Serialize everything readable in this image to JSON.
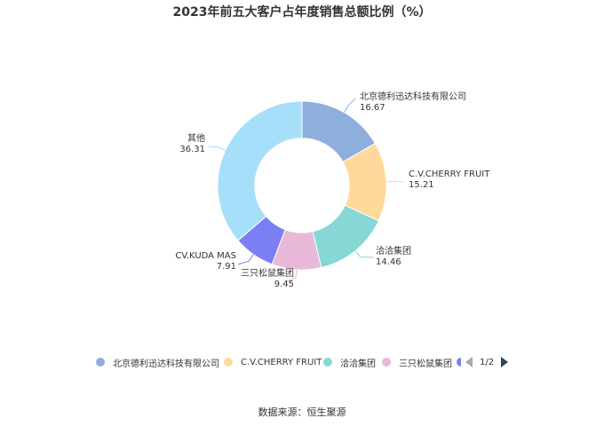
{
  "chart_data": {
    "type": "pie",
    "title": "2023年前五大客户占年度销售总额比例（%）",
    "categories": [
      "北京德利迅达科技有限公司",
      "C.V.CHERRY FRUIT",
      "洽洽集团",
      "三只松鼠集团",
      "CV.KUDA MAS",
      "其他"
    ],
    "values": [
      16.67,
      15.21,
      14.46,
      9.45,
      7.91,
      36.31
    ],
    "value_labels": [
      "16.67",
      "15.21",
      "14.46",
      "9.45",
      "7.91",
      "36.31"
    ],
    "colors": [
      "#8eaedc",
      "#ffd99b",
      "#86d7d6",
      "#e8b9d8",
      "#7b7ef5",
      "#a6dff9"
    ],
    "inner_radius_ratio": 0.56,
    "legend_position": "bottom"
  },
  "legend": {
    "visible_items": [
      "北京德利迅达科技有限公司",
      "C.V.CHERRY FRUIT",
      "洽洽集团",
      "三只松鼠集团"
    ],
    "page_indicator": "1/2"
  },
  "source_text": "数据来源：恒生聚源"
}
